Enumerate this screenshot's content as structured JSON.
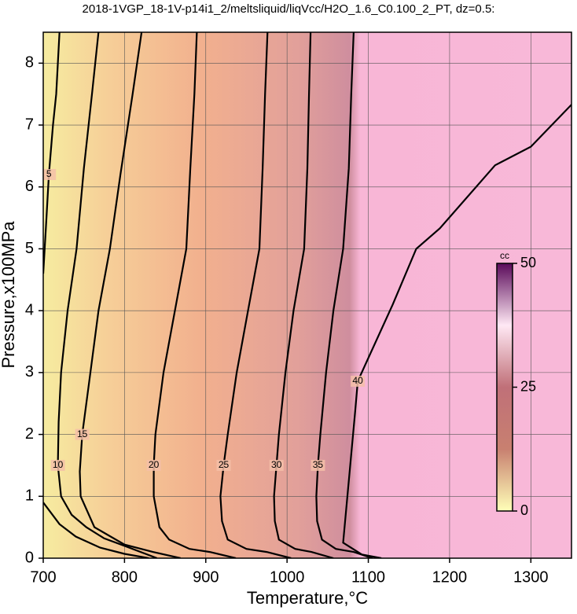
{
  "chart_data": {
    "type": "contour",
    "title": "2018-1VGP_18-1V-p14i1_2/meltsliquid/liqVcc/H2O_1.6_C0.100_2_PT, dz=0.5:",
    "x_label": "Temperature,°C",
    "y_label": "Pressure,x100MPa",
    "xlim": [
      700,
      1350
    ],
    "ylim": [
      0,
      8.5
    ],
    "xticks": [
      700,
      800,
      900,
      1000,
      1100,
      1200,
      1300
    ],
    "yticks": [
      0,
      1,
      2,
      3,
      4,
      5,
      6,
      7,
      8
    ],
    "grid": true,
    "line_color": "#000000",
    "contours": [
      {
        "level": 5,
        "x": [
          720,
          716,
          712,
          707,
          704,
          700,
          null,
          700,
          720,
          740,
          770,
          800,
          830
        ],
        "y": [
          8.5,
          7.5,
          7,
          6.2,
          5.5,
          4.6,
          null,
          0.9,
          0.55,
          0.35,
          0.17,
          0.07,
          0
        ]
      },
      {
        "level": 10,
        "x": [
          768,
          760,
          750,
          741,
          730,
          722,
          719,
          718,
          722,
          735,
          753,
          775,
          800,
          840
        ],
        "y": [
          8.5,
          7.5,
          6.3,
          5,
          4,
          3,
          2.2,
          1.5,
          1,
          0.7,
          0.5,
          0.32,
          0.2,
          0
        ]
      },
      {
        "level": 15,
        "x": [
          821,
          810,
          795,
          782,
          768,
          758,
          748,
          745,
          746,
          763,
          800,
          835,
          869
        ],
        "y": [
          8.5,
          7.5,
          6.2,
          5,
          4,
          3,
          2,
          1.4,
          1,
          0.5,
          0.22,
          0.1,
          0
        ]
      },
      {
        "level": 20,
        "x": [
          889,
          886,
          881,
          876,
          862,
          848,
          838,
          836,
          836,
          843,
          855,
          880,
          905,
          937
        ],
        "y": [
          8.5,
          7.5,
          6.3,
          5,
          4,
          3,
          2,
          1.5,
          1,
          0.5,
          0.3,
          0.15,
          0.1,
          0
        ]
      },
      {
        "level": 25,
        "x": [
          976,
          973,
          970,
          966,
          952,
          938,
          927,
          922,
          918,
          920,
          927,
          950,
          975,
          1005
        ],
        "y": [
          8.5,
          7.5,
          6.3,
          5,
          4,
          3,
          2,
          1.5,
          1,
          0.6,
          0.3,
          0.15,
          0.1,
          0
        ]
      },
      {
        "level": 30,
        "x": [
          1029,
          1027,
          1025,
          1021,
          1008,
          998,
          990,
          987,
          984,
          985,
          990,
          1010,
          1030,
          1057
        ],
        "y": [
          8.5,
          7.5,
          6.3,
          5,
          4,
          3,
          2,
          1.5,
          1,
          0.6,
          0.3,
          0.15,
          0.1,
          0
        ]
      },
      {
        "level": 35,
        "x": [
          1082,
          1079,
          1076,
          1069,
          1057,
          1048,
          1041,
          1038,
          1036,
          1037,
          1043,
          1060,
          1082,
          1105
        ],
        "y": [
          8.5,
          7.5,
          6.3,
          5,
          4,
          3,
          2,
          1.5,
          1,
          0.6,
          0.3,
          0.15,
          0.1,
          0
        ]
      },
      {
        "level": 40,
        "x": [
          1350,
          1300,
          1256,
          1188,
          1159,
          1130,
          1087,
          1084,
          1077,
          1069,
          1092,
          1116
        ],
        "y": [
          7.33,
          6.65,
          6.35,
          5.33,
          5.0,
          4.1,
          2.86,
          2.4,
          1.4,
          0.25,
          0.06,
          0
        ]
      }
    ],
    "colorbar": {
      "label": "cc",
      "lim": [
        0,
        50
      ],
      "ticks": [
        0,
        25,
        50
      ],
      "colors": [
        "#ffffb8",
        "#c88070",
        "#c07078",
        "#ffe8f4",
        "#5a0a5a"
      ]
    }
  }
}
